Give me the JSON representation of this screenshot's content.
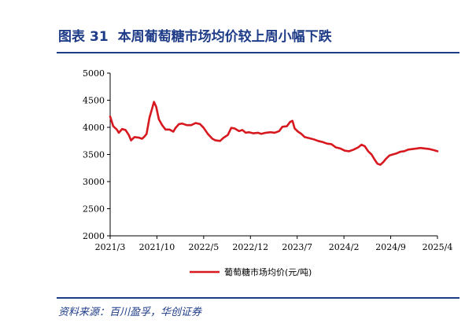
{
  "header": {
    "label": "图表",
    "number": "31",
    "title": "本周葡萄糖市场均价较上周小幅下跌"
  },
  "footer": {
    "source": "资料来源：百川盈孚，华创证券"
  },
  "colors": {
    "accent": "#1f3c88",
    "series": "#d7191f"
  },
  "chart_data": {
    "type": "line",
    "title": "",
    "xlabel": "",
    "ylabel": "",
    "ylim": [
      2000,
      5000
    ],
    "yticks": [
      2000,
      2500,
      3000,
      3500,
      4000,
      4500,
      5000
    ],
    "xlim": [
      "2021-03",
      "2025-04"
    ],
    "xticks": [
      "2021/3",
      "2021/10",
      "2022/5",
      "2022/12",
      "2023/7",
      "2024/2",
      "2024/9",
      "2025/4"
    ],
    "legend": "bottom",
    "grid": false,
    "series": [
      {
        "name": "葡萄糖市场均价(元/吨)",
        "points": [
          [
            "2021-03-01",
            4200
          ],
          [
            "2021-03-15",
            4020
          ],
          [
            "2021-04-01",
            3960
          ],
          [
            "2021-04-10",
            3900
          ],
          [
            "2021-04-25",
            3970
          ],
          [
            "2021-05-10",
            3950
          ],
          [
            "2021-05-25",
            3860
          ],
          [
            "2021-06-05",
            3760
          ],
          [
            "2021-06-20",
            3820
          ],
          [
            "2021-07-10",
            3810
          ],
          [
            "2021-07-25",
            3790
          ],
          [
            "2021-08-05",
            3830
          ],
          [
            "2021-08-15",
            3880
          ],
          [
            "2021-08-28",
            4180
          ],
          [
            "2021-09-10",
            4350
          ],
          [
            "2021-09-18",
            4470
          ],
          [
            "2021-09-28",
            4380
          ],
          [
            "2021-10-10",
            4150
          ],
          [
            "2021-10-25",
            4040
          ],
          [
            "2021-11-10",
            3960
          ],
          [
            "2021-11-28",
            3960
          ],
          [
            "2021-12-15",
            3920
          ],
          [
            "2021-12-25",
            3990
          ],
          [
            "2022-01-10",
            4060
          ],
          [
            "2022-01-25",
            4070
          ],
          [
            "2022-02-15",
            4040
          ],
          [
            "2022-03-05",
            4040
          ],
          [
            "2022-03-25",
            4080
          ],
          [
            "2022-04-15",
            4060
          ],
          [
            "2022-05-01",
            3990
          ],
          [
            "2022-05-20",
            3880
          ],
          [
            "2022-06-10",
            3790
          ],
          [
            "2022-06-25",
            3760
          ],
          [
            "2022-07-15",
            3750
          ],
          [
            "2022-08-01",
            3810
          ],
          [
            "2022-08-20",
            3860
          ],
          [
            "2022-09-05",
            3990
          ],
          [
            "2022-09-20",
            3980
          ],
          [
            "2022-10-10",
            3930
          ],
          [
            "2022-10-25",
            3950
          ],
          [
            "2022-11-10",
            3900
          ],
          [
            "2022-11-25",
            3910
          ],
          [
            "2022-12-15",
            3890
          ],
          [
            "2023-01-05",
            3900
          ],
          [
            "2023-01-20",
            3880
          ],
          [
            "2023-02-10",
            3900
          ],
          [
            "2023-03-01",
            3910
          ],
          [
            "2023-03-20",
            3900
          ],
          [
            "2023-04-10",
            3930
          ],
          [
            "2023-04-25",
            4010
          ],
          [
            "2023-05-15",
            4020
          ],
          [
            "2023-05-30",
            4100
          ],
          [
            "2023-06-10",
            4120
          ],
          [
            "2023-06-20",
            3980
          ],
          [
            "2023-07-05",
            3920
          ],
          [
            "2023-07-20",
            3880
          ],
          [
            "2023-08-05",
            3820
          ],
          [
            "2023-08-25",
            3800
          ],
          [
            "2023-09-15",
            3780
          ],
          [
            "2023-10-05",
            3750
          ],
          [
            "2023-10-25",
            3730
          ],
          [
            "2023-11-15",
            3700
          ],
          [
            "2023-12-05",
            3690
          ],
          [
            "2023-12-25",
            3630
          ],
          [
            "2024-01-15",
            3610
          ],
          [
            "2024-02-05",
            3570
          ],
          [
            "2024-02-25",
            3560
          ],
          [
            "2024-03-15",
            3590
          ],
          [
            "2024-04-05",
            3630
          ],
          [
            "2024-04-20",
            3680
          ],
          [
            "2024-05-05",
            3650
          ],
          [
            "2024-05-20",
            3560
          ],
          [
            "2024-06-05",
            3500
          ],
          [
            "2024-06-20",
            3400
          ],
          [
            "2024-07-01",
            3330
          ],
          [
            "2024-07-15",
            3310
          ],
          [
            "2024-07-28",
            3360
          ],
          [
            "2024-08-10",
            3420
          ],
          [
            "2024-08-25",
            3480
          ],
          [
            "2024-09-10",
            3500
          ],
          [
            "2024-09-28",
            3520
          ],
          [
            "2024-10-15",
            3550
          ],
          [
            "2024-11-01",
            3560
          ],
          [
            "2024-11-20",
            3590
          ],
          [
            "2024-12-10",
            3600
          ],
          [
            "2024-12-28",
            3610
          ],
          [
            "2025-01-15",
            3620
          ],
          [
            "2025-02-05",
            3610
          ],
          [
            "2025-02-25",
            3600
          ],
          [
            "2025-03-15",
            3580
          ],
          [
            "2025-04-01",
            3560
          ]
        ]
      }
    ]
  }
}
